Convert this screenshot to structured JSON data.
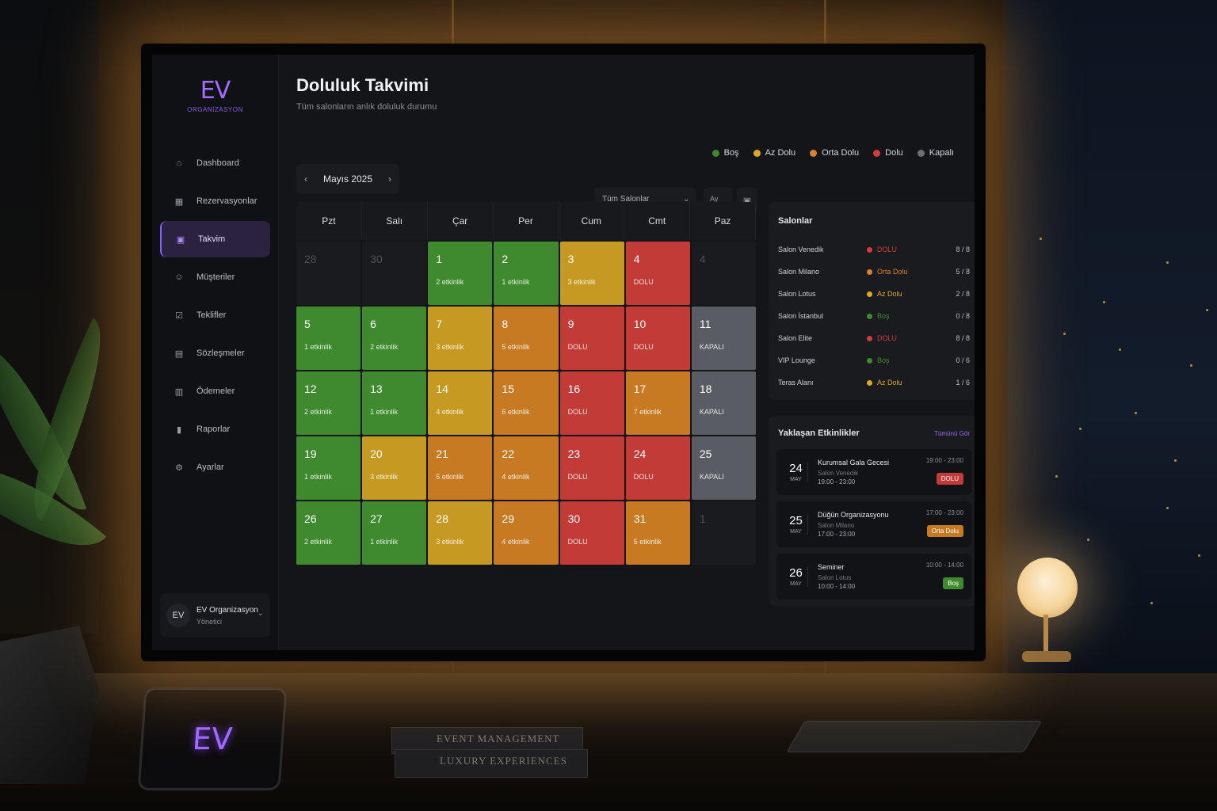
{
  "scene": {
    "tablet_logo": "EV",
    "books": [
      "EVENT MANAGEMENT",
      "LUXURY EXPERIENCES"
    ]
  },
  "brand": {
    "mark": "EV",
    "subtitle": "ORGANİZASYON"
  },
  "sidebar": {
    "items": [
      {
        "label": "Dashboard",
        "icon": "home-icon",
        "glyph": "⌂"
      },
      {
        "label": "Rezervasyonlar",
        "icon": "calendar-list-icon",
        "glyph": "▦"
      },
      {
        "label": "Takvim",
        "icon": "calendar-icon",
        "glyph": "▣",
        "active": true
      },
      {
        "label": "Müşteriler",
        "icon": "users-icon",
        "glyph": "☺"
      },
      {
        "label": "Teklifler",
        "icon": "document-check-icon",
        "glyph": "☑"
      },
      {
        "label": "Sözleşmeler",
        "icon": "contract-icon",
        "glyph": "▤"
      },
      {
        "label": "Ödemeler",
        "icon": "wallet-icon",
        "glyph": "▥"
      },
      {
        "label": "Raporlar",
        "icon": "chart-icon",
        "glyph": "▮"
      },
      {
        "label": "Ayarlar",
        "icon": "gear-icon",
        "glyph": "⚙"
      }
    ],
    "user": {
      "initials": "EV",
      "name": "EV Organizasyon",
      "role": "Yönetici"
    }
  },
  "header": {
    "title": "Doluluk Takvimi",
    "subtitle": "Tüm salonların anlık doluluk durumu"
  },
  "colors": {
    "bos": "#3f8a2f",
    "az_dolu": "#c69a22",
    "orta_dolu": "#c87a22",
    "dolu": "#c33b36",
    "kapali": "#5a5c63",
    "accent": "#8c5cff"
  },
  "legend": [
    {
      "label": "Boş",
      "color": "#3f8a2f"
    },
    {
      "label": "Az Dolu",
      "color": "#e0a81e"
    },
    {
      "label": "Orta Dolu",
      "color": "#d9822a"
    },
    {
      "label": "Dolu",
      "color": "#d23c3c"
    },
    {
      "label": "Kapalı",
      "color": "#6d6f76"
    }
  ],
  "toolbar": {
    "month_label": "Mayıs 2025",
    "prev": "‹",
    "next": "›",
    "salon_filter": "Tüm Salonlar",
    "view_mode": "Ay"
  },
  "calendar": {
    "weekdays": [
      "Pzt",
      "Salı",
      "Çar",
      "Per",
      "Cum",
      "Cmt",
      "Paz"
    ],
    "days": [
      {
        "n": "28",
        "info": "",
        "st": "muted"
      },
      {
        "n": "30",
        "info": "",
        "st": "muted"
      },
      {
        "n": "1",
        "info": "2 etkinlik",
        "st": "bos"
      },
      {
        "n": "2",
        "info": "1 etkinlik",
        "st": "bos"
      },
      {
        "n": "3",
        "info": "3 etkinlik",
        "st": "az"
      },
      {
        "n": "4",
        "info": "DOLU",
        "st": "dolu"
      },
      {
        "n": "4",
        "info": "",
        "st": "muted"
      },
      {
        "n": "5",
        "info": "1 etkinlik",
        "st": "bos"
      },
      {
        "n": "6",
        "info": "2 etkinlik",
        "st": "bos"
      },
      {
        "n": "7",
        "info": "3 etkinlik",
        "st": "az"
      },
      {
        "n": "8",
        "info": "5 etkinlik",
        "st": "orta"
      },
      {
        "n": "9",
        "info": "DOLU",
        "st": "dolu"
      },
      {
        "n": "10",
        "info": "DOLU",
        "st": "dolu"
      },
      {
        "n": "11",
        "info": "KAPALI",
        "st": "kapali"
      },
      {
        "n": "12",
        "info": "2 etkinlik",
        "st": "bos"
      },
      {
        "n": "13",
        "info": "1 etkinlik",
        "st": "bos"
      },
      {
        "n": "14",
        "info": "4 etkinlik",
        "st": "az"
      },
      {
        "n": "15",
        "info": "6 etkinlik",
        "st": "orta"
      },
      {
        "n": "16",
        "info": "DOLU",
        "st": "dolu"
      },
      {
        "n": "17",
        "info": "7 etkinlik",
        "st": "orta"
      },
      {
        "n": "18",
        "info": "KAPALI",
        "st": "kapali"
      },
      {
        "n": "19",
        "info": "1 etkinlik",
        "st": "bos"
      },
      {
        "n": "20",
        "info": "3 etkinlik",
        "st": "az"
      },
      {
        "n": "21",
        "info": "5 etkinlik",
        "st": "orta"
      },
      {
        "n": "22",
        "info": "4 etkinlik",
        "st": "orta"
      },
      {
        "n": "23",
        "info": "DOLU",
        "st": "dolu"
      },
      {
        "n": "24",
        "info": "DOLU",
        "st": "dolu"
      },
      {
        "n": "25",
        "info": "KAPALI",
        "st": "kapali"
      },
      {
        "n": "26",
        "info": "2 etkinlik",
        "st": "bos"
      },
      {
        "n": "27",
        "info": "1 etkinlik",
        "st": "bos"
      },
      {
        "n": "28",
        "info": "3 etkinlik",
        "st": "az"
      },
      {
        "n": "29",
        "info": "4 etkinlik",
        "st": "orta"
      },
      {
        "n": "30",
        "info": "DOLU",
        "st": "dolu"
      },
      {
        "n": "31",
        "info": "5 etkinlik",
        "st": "orta"
      },
      {
        "n": "1",
        "info": "",
        "st": "muted"
      }
    ]
  },
  "salons": {
    "title": "Salonlar",
    "rows": [
      {
        "name": "Salon Venedik",
        "status": "DOLU",
        "color": "#d23c3c",
        "count": "8 / 8"
      },
      {
        "name": "Salon Milano",
        "status": "Orta Dolu",
        "color": "#d9822a",
        "count": "5 / 8"
      },
      {
        "name": "Salon Lotus",
        "status": "Az Dolu",
        "color": "#e0a81e",
        "count": "2 / 8"
      },
      {
        "name": "Salon İstanbul",
        "status": "Boş",
        "color": "#3f8a2f",
        "count": "0 / 8"
      },
      {
        "name": "Salon Elite",
        "status": "DOLU",
        "color": "#d23c3c",
        "count": "8 / 8"
      },
      {
        "name": "VIP Lounge",
        "status": "Boş",
        "color": "#3f8a2f",
        "count": "0 / 6"
      },
      {
        "name": "Teras Alanı",
        "status": "Az Dolu",
        "color": "#e0a81e",
        "count": "1 / 6"
      }
    ]
  },
  "events": {
    "title": "Yaklaşan Etkinlikler",
    "see_all": "Tümünü Gör",
    "items": [
      {
        "day": "24",
        "month": "MAY",
        "title": "Kurumsal Gala Gecesi",
        "salon": "Salon Venedik",
        "time": "19:00 - 23:00",
        "time_right": "19:00 - 23:00",
        "badge": "DOLU",
        "badge_color": "#c33b36"
      },
      {
        "day": "25",
        "month": "MAY",
        "title": "Düğün Organizasyonu",
        "salon": "Salon Milano",
        "time": "17:00 - 23:00",
        "time_right": "17:00 - 23:00",
        "badge": "Orta Dolu",
        "badge_color": "#c87a22"
      },
      {
        "day": "26",
        "month": "MAY",
        "title": "Seminer",
        "salon": "Salon Lotus",
        "time": "10:00 - 14:00",
        "time_right": "10:00 - 14:00",
        "badge": "Boş",
        "badge_color": "#3f8a2f"
      }
    ]
  }
}
